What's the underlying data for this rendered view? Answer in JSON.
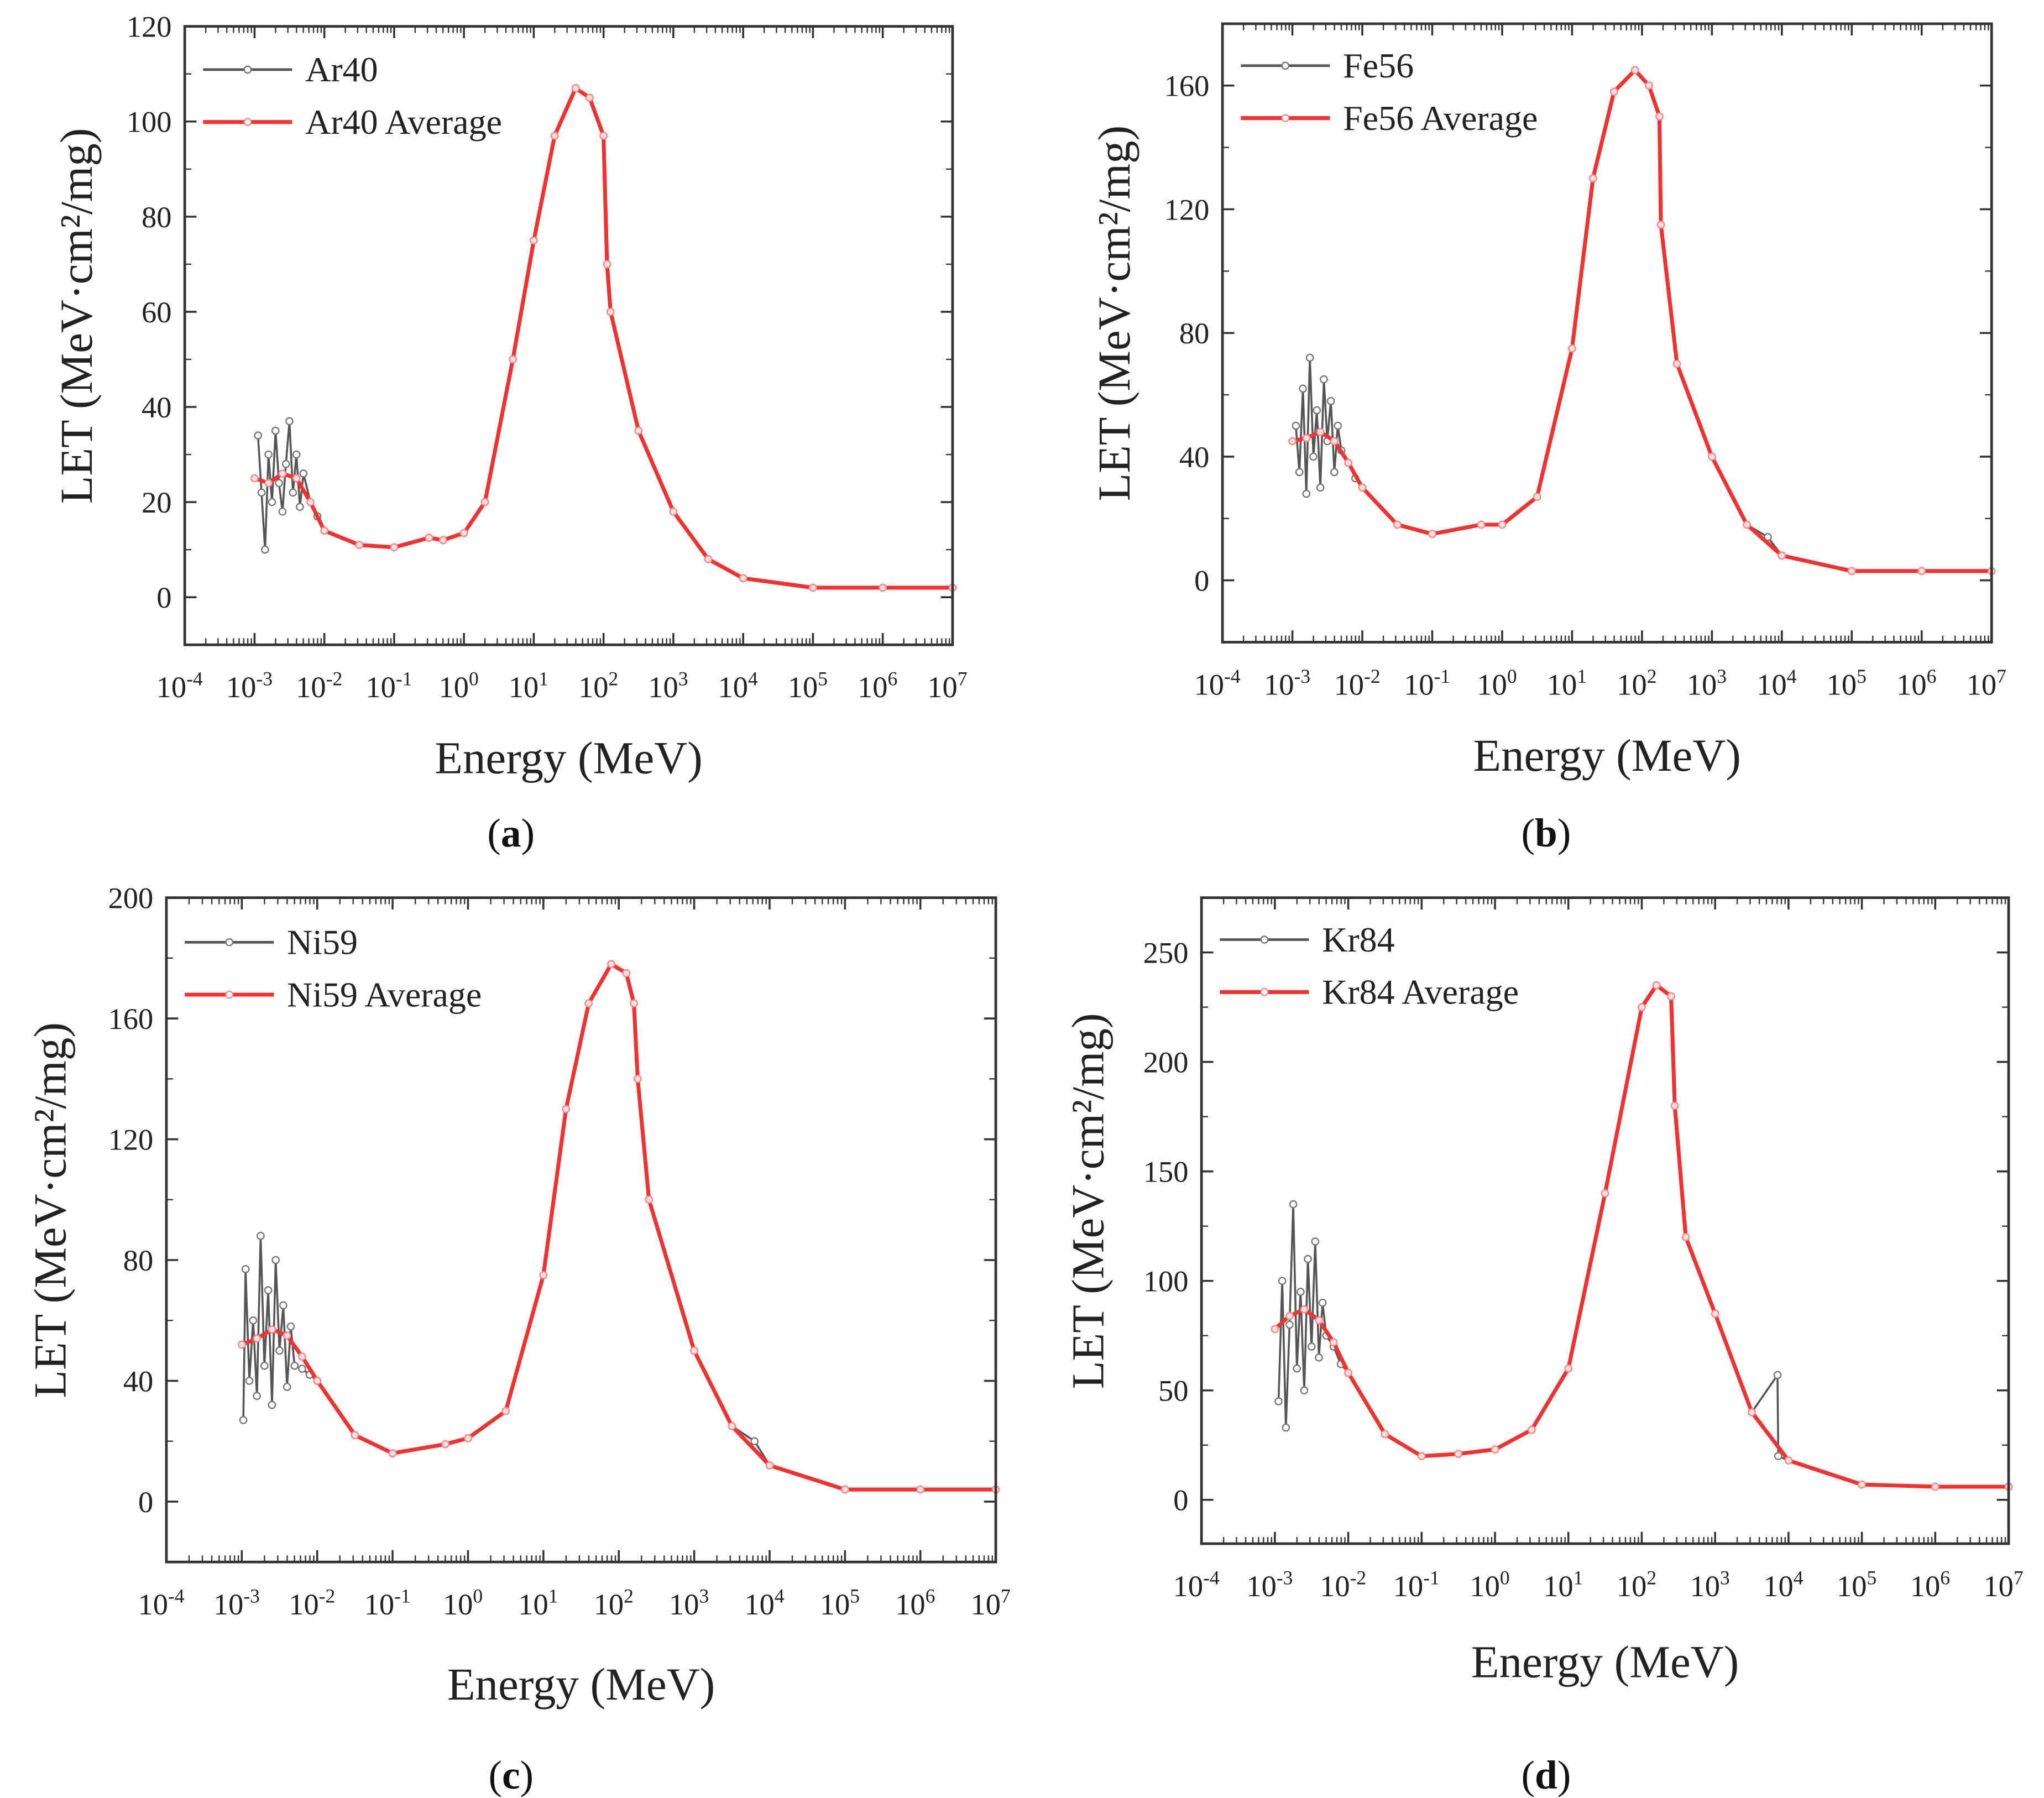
{
  "chart_data": [
    {
      "type": "line",
      "panel_label": "(a)",
      "panel_letter": "a",
      "xlabel": "Energy (MeV)",
      "ylabel": "LET (MeV·cm²/mg)",
      "xscale": "log",
      "xlim_exp": [
        -4,
        7
      ],
      "x_tick_exponents": [
        -4,
        -3,
        -2,
        -1,
        0,
        1,
        2,
        3,
        4,
        5,
        6,
        7
      ],
      "ylim": [
        -10,
        120
      ],
      "y_ticks": [
        0,
        20,
        40,
        60,
        80,
        100,
        120
      ],
      "legend": "top-left",
      "colors": {
        "raw": "#555555",
        "avg": "#ee3333"
      },
      "series": [
        {
          "name": "Ar40",
          "x_log10": [
            -2.95,
            -2.9,
            -2.85,
            -2.8,
            -2.75,
            -2.7,
            -2.65,
            -2.6,
            -2.55,
            -2.5,
            -2.45,
            -2.4,
            -2.35,
            -2.3,
            -2.2,
            -2.1,
            -2.0,
            -1.5,
            -1.0,
            -0.5,
            -0.3,
            0,
            0.3,
            0.7,
            1,
            1.3,
            1.6,
            1.8,
            2,
            2.05,
            2.1,
            2.5,
            3,
            3.5,
            4,
            5,
            6,
            7
          ],
          "y": [
            34,
            22,
            10,
            30,
            20,
            35,
            24,
            18,
            28,
            37,
            22,
            30,
            19,
            26,
            20,
            17,
            14,
            11,
            10.5,
            12.5,
            12,
            13.5,
            20,
            50,
            75,
            97,
            107,
            105,
            97,
            70,
            60,
            35,
            18,
            8,
            4,
            2,
            2,
            2
          ]
        },
        {
          "name": "Ar40 Average",
          "x_log10": [
            -3,
            -2.8,
            -2.6,
            -2.4,
            -2.2,
            -2,
            -1.5,
            -1,
            -0.5,
            -0.3,
            0,
            0.3,
            0.7,
            1,
            1.3,
            1.6,
            1.8,
            2,
            2.05,
            2.1,
            2.5,
            3,
            3.5,
            4,
            5,
            6,
            7
          ],
          "y": [
            25,
            24,
            26,
            25,
            20,
            14,
            11,
            10.5,
            12.5,
            12,
            13.5,
            20,
            50,
            75,
            97,
            107,
            105,
            97,
            70,
            60,
            35,
            18,
            8,
            4,
            2,
            2,
            2
          ]
        }
      ]
    },
    {
      "type": "line",
      "panel_label": "(b)",
      "panel_letter": "b",
      "xlabel": "Energy (MeV)",
      "ylabel": "LET (MeV·cm²/mg)",
      "xscale": "log",
      "xlim_exp": [
        -4,
        7
      ],
      "x_tick_exponents": [
        -4,
        -3,
        -2,
        -1,
        0,
        1,
        2,
        3,
        4,
        5,
        6,
        7
      ],
      "ylim": [
        -20,
        180
      ],
      "y_ticks": [
        0,
        40,
        80,
        120,
        160
      ],
      "legend": "top-left",
      "colors": {
        "raw": "#555555",
        "avg": "#ee3333"
      },
      "series": [
        {
          "name": "Fe56",
          "x_log10": [
            -2.95,
            -2.9,
            -2.85,
            -2.8,
            -2.75,
            -2.7,
            -2.65,
            -2.6,
            -2.55,
            -2.5,
            -2.45,
            -2.4,
            -2.35,
            -2.3,
            -2.2,
            -2.1,
            -2,
            -1.5,
            -1,
            -0.3,
            0,
            0.5,
            1,
            1.3,
            1.6,
            1.9,
            2.1,
            2.25,
            2.27,
            2.5,
            3,
            3.5,
            3.8,
            4,
            5,
            6,
            7
          ],
          "y": [
            50,
            35,
            62,
            28,
            72,
            40,
            55,
            30,
            65,
            45,
            58,
            35,
            50,
            42,
            38,
            33,
            30,
            18,
            15,
            18,
            18,
            27,
            75,
            130,
            158,
            165,
            160,
            150,
            115,
            70,
            40,
            18,
            14,
            8,
            3,
            3,
            3
          ]
        },
        {
          "name": "Fe56 Average",
          "x_log10": [
            -3,
            -2.8,
            -2.6,
            -2.4,
            -2.2,
            -2,
            -1.5,
            -1,
            -0.3,
            0,
            0.5,
            1,
            1.3,
            1.6,
            1.9,
            2.1,
            2.25,
            2.27,
            2.5,
            3,
            3.5,
            4,
            5,
            6,
            7
          ],
          "y": [
            45,
            46,
            48,
            45,
            38,
            30,
            18,
            15,
            18,
            18,
            27,
            75,
            130,
            158,
            165,
            160,
            150,
            115,
            70,
            40,
            18,
            8,
            3,
            3,
            3
          ]
        }
      ]
    },
    {
      "type": "line",
      "panel_label": "(c)",
      "panel_letter": "c",
      "xlabel": "Energy (MeV)",
      "ylabel": "LET (MeV·cm²/mg)",
      "xscale": "log",
      "xlim_exp": [
        -4,
        7
      ],
      "x_tick_exponents": [
        -4,
        -3,
        -2,
        -1,
        0,
        1,
        2,
        3,
        4,
        5,
        6,
        7
      ],
      "ylim": [
        -20,
        200
      ],
      "y_ticks": [
        0,
        40,
        80,
        120,
        160,
        200
      ],
      "legend": "top-left",
      "colors": {
        "raw": "#555555",
        "avg": "#ee3333"
      },
      "series": [
        {
          "name": "Ni59",
          "x_log10": [
            -2.98,
            -2.95,
            -2.9,
            -2.85,
            -2.8,
            -2.75,
            -2.7,
            -2.65,
            -2.6,
            -2.55,
            -2.5,
            -2.45,
            -2.4,
            -2.35,
            -2.3,
            -2.2,
            -2.1,
            -2,
            -1.5,
            -1,
            -0.3,
            0,
            0.5,
            1,
            1.3,
            1.6,
            1.9,
            2.1,
            2.2,
            2.25,
            2.4,
            3,
            3.5,
            3.8,
            4,
            5,
            6,
            7
          ],
          "y": [
            27,
            77,
            40,
            60,
            35,
            88,
            45,
            70,
            32,
            80,
            50,
            65,
            38,
            58,
            45,
            44,
            42,
            40,
            22,
            16,
            19,
            21,
            30,
            75,
            130,
            165,
            178,
            175,
            165,
            140,
            100,
            50,
            25,
            20,
            12,
            4,
            4,
            4
          ]
        },
        {
          "name": "Ni59 Average",
          "x_log10": [
            -3,
            -2.8,
            -2.6,
            -2.4,
            -2.2,
            -2,
            -1.5,
            -1,
            -0.3,
            0,
            0.5,
            1,
            1.3,
            1.6,
            1.9,
            2.1,
            2.2,
            2.25,
            2.4,
            3,
            3.5,
            4,
            5,
            6,
            7
          ],
          "y": [
            52,
            54,
            57,
            55,
            48,
            40,
            22,
            16,
            19,
            21,
            30,
            75,
            130,
            165,
            178,
            175,
            165,
            140,
            100,
            50,
            25,
            12,
            4,
            4,
            4
          ]
        }
      ]
    },
    {
      "type": "line",
      "panel_label": "(d)",
      "panel_letter": "d",
      "xlabel": "Energy (MeV)",
      "ylabel": "LET (MeV·cm²/mg)",
      "xscale": "log",
      "xlim_exp": [
        -4,
        7
      ],
      "x_tick_exponents": [
        -4,
        -3,
        -2,
        -1,
        0,
        1,
        2,
        3,
        4,
        5,
        6,
        7
      ],
      "ylim": [
        -20,
        275
      ],
      "y_ticks": [
        0,
        50,
        100,
        150,
        200,
        250
      ],
      "legend": "top-left",
      "colors": {
        "raw": "#555555",
        "avg": "#ee3333"
      },
      "series": [
        {
          "name": "Kr84",
          "x_log10": [
            -2.95,
            -2.9,
            -2.85,
            -2.8,
            -2.75,
            -2.7,
            -2.65,
            -2.6,
            -2.55,
            -2.5,
            -2.45,
            -2.4,
            -2.35,
            -2.3,
            -2.2,
            -2.1,
            -2,
            -1.5,
            -1,
            -0.5,
            0,
            0.5,
            1,
            1.5,
            2,
            2.2,
            2.4,
            2.45,
            2.6,
            3,
            3.5,
            3.85,
            3.86,
            4,
            5,
            6,
            7
          ],
          "y": [
            45,
            100,
            33,
            80,
            135,
            60,
            95,
            50,
            110,
            70,
            118,
            65,
            90,
            75,
            70,
            62,
            58,
            30,
            20,
            21,
            23,
            32,
            60,
            140,
            225,
            235,
            230,
            180,
            120,
            85,
            40,
            57,
            20,
            18,
            7,
            6,
            6
          ]
        },
        {
          "name": "Kr84 Average",
          "x_log10": [
            -3,
            -2.8,
            -2.6,
            -2.4,
            -2.2,
            -2,
            -1.5,
            -1,
            -0.5,
            0,
            0.5,
            1,
            1.5,
            2,
            2.2,
            2.4,
            2.45,
            2.6,
            3,
            3.5,
            4,
            5,
            6,
            7
          ],
          "y": [
            78,
            84,
            87,
            82,
            72,
            58,
            30,
            20,
            21,
            23,
            32,
            60,
            140,
            225,
            235,
            230,
            180,
            120,
            85,
            40,
            18,
            7,
            6,
            6
          ]
        }
      ]
    }
  ]
}
